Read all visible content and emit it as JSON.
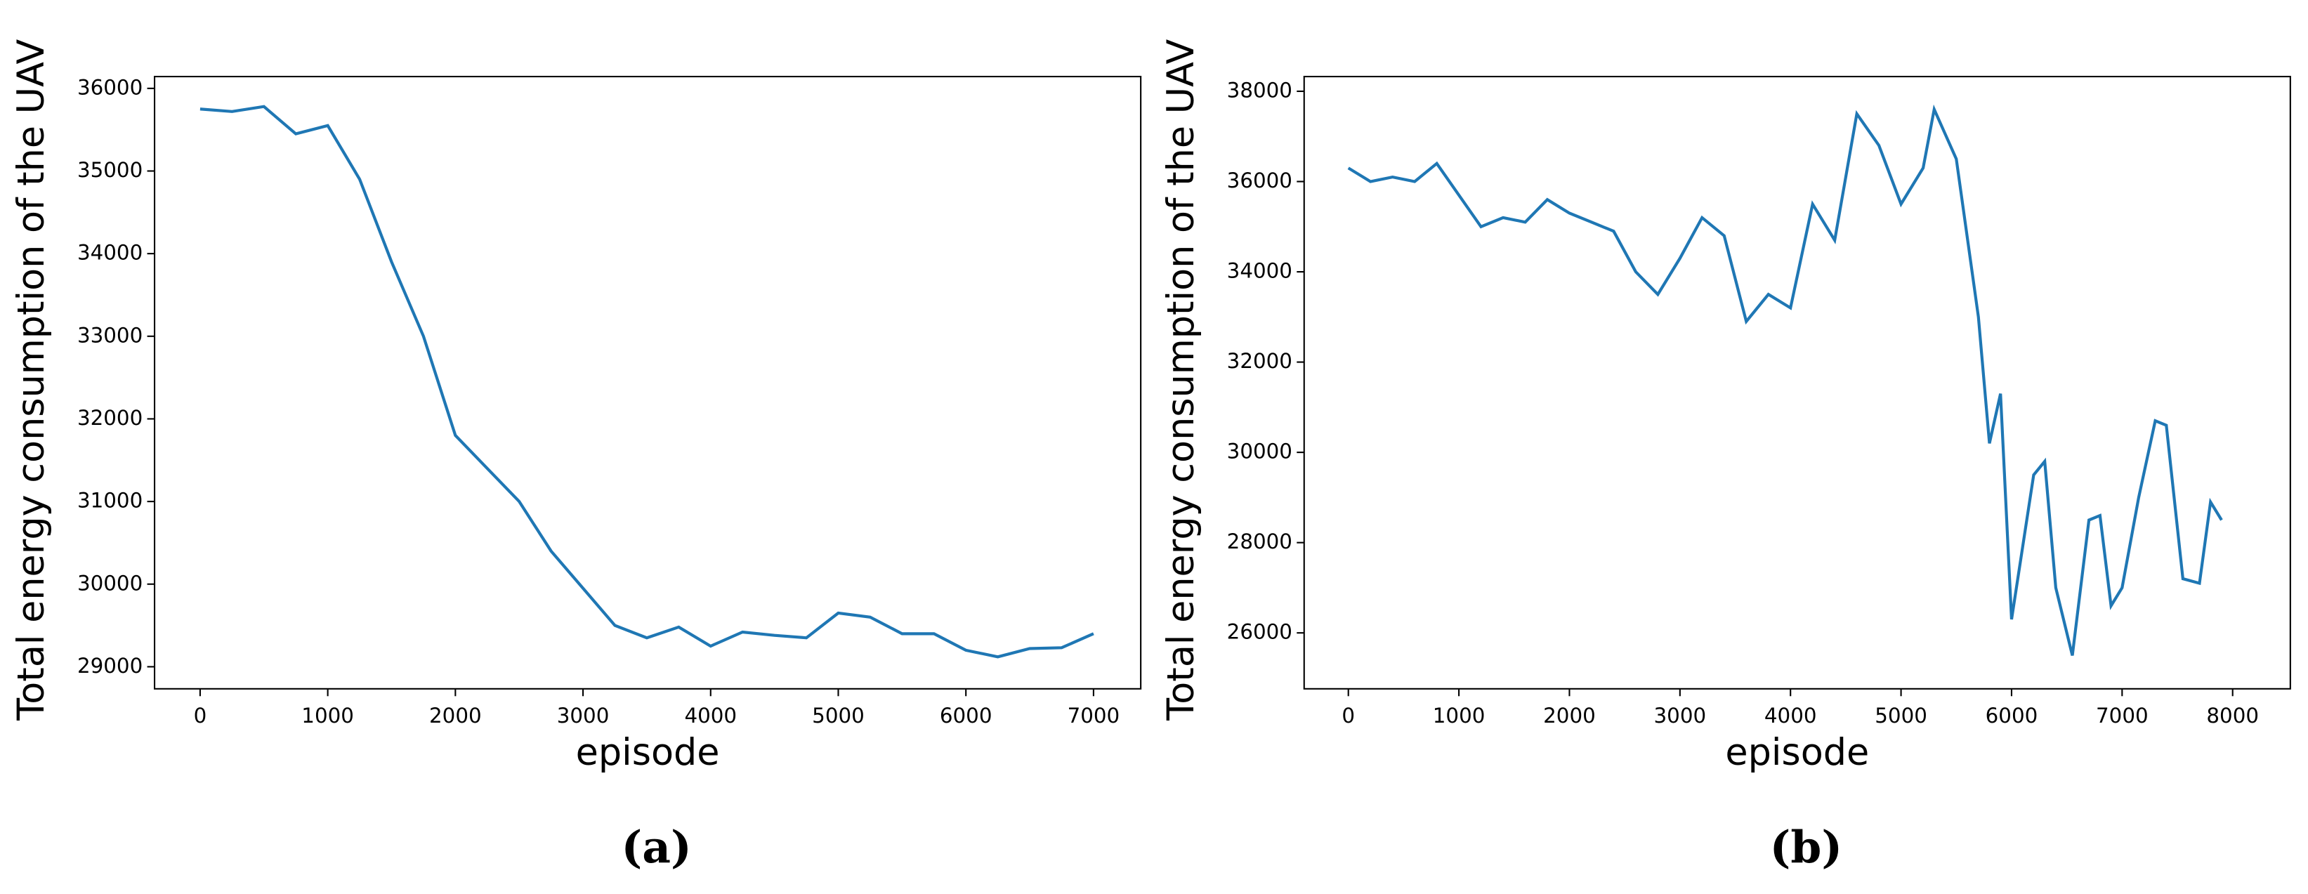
{
  "chart_data": [
    {
      "type": "line",
      "caption": "(a)",
      "x_label": "episode",
      "y_label": "Total energy consumption of the UAV",
      "x": [
        0,
        250,
        500,
        750,
        1000,
        1250,
        1500,
        1750,
        2000,
        2250,
        2500,
        2750,
        3000,
        3250,
        3500,
        3750,
        4000,
        4250,
        4500,
        4750,
        5000,
        5250,
        5500,
        5750,
        6000,
        6250,
        6500,
        6750,
        7000
      ],
      "series": [
        {
          "name": "energy",
          "color": "#1f77b4",
          "values": [
            35750,
            35720,
            35780,
            35450,
            35550,
            34900,
            33900,
            33000,
            31800,
            31400,
            31000,
            30400,
            29950,
            29500,
            29350,
            29480,
            29250,
            29420,
            29380,
            29350,
            29650,
            29600,
            29400,
            29400,
            29200,
            29120,
            29220,
            29230,
            29400
          ]
        }
      ],
      "xlim": [
        -357,
        7370
      ],
      "xticks": [
        0,
        1000,
        2000,
        3000,
        4000,
        5000,
        6000,
        7000
      ],
      "ylim": [
        28733,
        36143
      ],
      "yticks": [
        29000,
        30000,
        31000,
        32000,
        33000,
        34000,
        35000,
        36000
      ]
    },
    {
      "type": "line",
      "caption": "(b)",
      "x_label": "episode",
      "y_label": "Total energy consumption of the UAV",
      "x": [
        0,
        200,
        400,
        600,
        800,
        1000,
        1200,
        1400,
        1600,
        1800,
        2000,
        2200,
        2400,
        2600,
        2800,
        3000,
        3200,
        3400,
        3600,
        3800,
        4000,
        4200,
        4400,
        4600,
        4800,
        5000,
        5200,
        5300,
        5500,
        5700,
        5800,
        5900,
        6000,
        6200,
        6300,
        6400,
        6550,
        6700,
        6800,
        6900,
        7000,
        7150,
        7300,
        7400,
        7550,
        7700,
        7800,
        7900
      ],
      "series": [
        {
          "name": "energy",
          "color": "#1f77b4",
          "values": [
            36300,
            36000,
            36100,
            36000,
            36400,
            35700,
            35000,
            35200,
            35100,
            35600,
            35300,
            35100,
            34900,
            34000,
            33500,
            34300,
            35200,
            34800,
            32900,
            33500,
            33200,
            35500,
            34700,
            37500,
            36800,
            35500,
            36300,
            37600,
            36500,
            33000,
            30200,
            31300,
            26300,
            29500,
            29800,
            27000,
            25500,
            28500,
            28600,
            26600,
            27000,
            29000,
            30700,
            30600,
            27200,
            27100,
            28900,
            28500
          ]
        }
      ],
      "xlim": [
        -400,
        8522
      ],
      "xticks": [
        0,
        1000,
        2000,
        3000,
        4000,
        5000,
        6000,
        7000,
        8000
      ],
      "ylim": [
        24761,
        38326
      ],
      "yticks": [
        26000,
        28000,
        30000,
        32000,
        34000,
        36000,
        38000
      ]
    }
  ]
}
